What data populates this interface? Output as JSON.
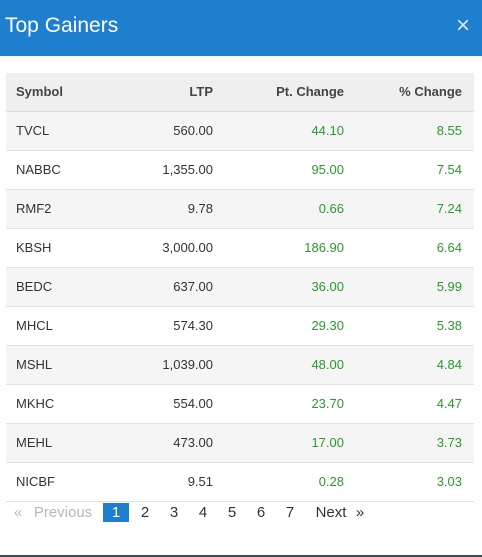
{
  "header": {
    "title": "Top Gainers",
    "close_glyph": "×"
  },
  "table": {
    "headers": [
      "Symbol",
      "LTP",
      "Pt. Change",
      "% Change"
    ],
    "rows": [
      [
        "TVCL",
        "560.00",
        "44.10",
        "8.55"
      ],
      [
        "NABBC",
        "1,355.00",
        "95.00",
        "7.54"
      ],
      [
        "RMF2",
        "9.78",
        "0.66",
        "7.24"
      ],
      [
        "KBSH",
        "3,000.00",
        "186.90",
        "6.64"
      ],
      [
        "BEDC",
        "637.00",
        "36.00",
        "5.99"
      ],
      [
        "MHCL",
        "574.30",
        "29.30",
        "5.38"
      ],
      [
        "MSHL",
        "1,039.00",
        "48.00",
        "4.84"
      ],
      [
        "MKHC",
        "554.00",
        "23.70",
        "4.47"
      ],
      [
        "MEHL",
        "473.00",
        "17.00",
        "3.73"
      ],
      [
        "NICBF",
        "9.51",
        "0.28",
        "3.03"
      ]
    ]
  },
  "pagination": {
    "prev_arrow": "«",
    "prev_label": "Previous",
    "pages": [
      "1",
      "2",
      "3",
      "4",
      "5",
      "6",
      "7"
    ],
    "active_page": "1",
    "next_label": "Next",
    "next_arrow": "»"
  },
  "colors": {
    "header_bg": "#1f7fcf",
    "positive": "#2a9a2a",
    "active_page_bg": "#1f7fcf"
  }
}
